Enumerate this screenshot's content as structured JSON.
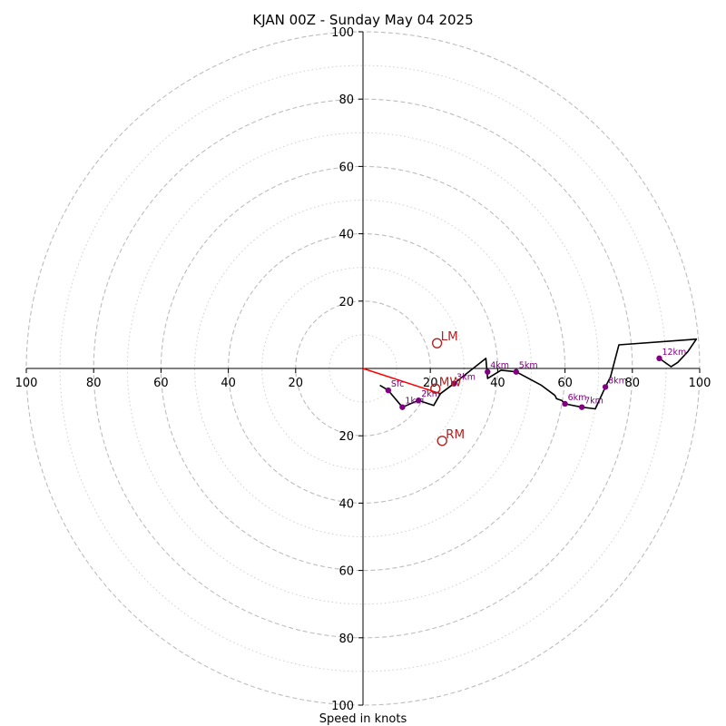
{
  "chart_data": {
    "type": "line",
    "subtype": "hodograph",
    "title": "KJAN 00Z - Sunday May 04 2025",
    "xlabel": "Speed in knots",
    "xlim": [
      -100,
      100
    ],
    "ylim": [
      -100,
      100
    ],
    "ring_major": [
      20,
      40,
      60,
      80,
      100
    ],
    "ring_minor": [
      10,
      30,
      50,
      70,
      90
    ],
    "x_ticks": [
      {
        "value": -100,
        "label": "100"
      },
      {
        "value": -80,
        "label": "80"
      },
      {
        "value": -60,
        "label": "60"
      },
      {
        "value": -40,
        "label": "40"
      },
      {
        "value": -20,
        "label": "20"
      },
      {
        "value": 20,
        "label": "20"
      },
      {
        "value": 40,
        "label": "40"
      },
      {
        "value": 60,
        "label": "60"
      },
      {
        "value": 80,
        "label": "80"
      },
      {
        "value": 100,
        "label": "100"
      }
    ],
    "y_ticks": [
      {
        "value": 100,
        "label": "100"
      },
      {
        "value": 80,
        "label": "80"
      },
      {
        "value": 60,
        "label": "60"
      },
      {
        "value": 40,
        "label": "40"
      },
      {
        "value": 20,
        "label": "20"
      },
      {
        "value": -20,
        "label": "20"
      },
      {
        "value": -40,
        "label": "40"
      },
      {
        "value": -60,
        "label": "60"
      },
      {
        "value": -80,
        "label": "80"
      },
      {
        "value": -100,
        "label": "100"
      }
    ],
    "series": [
      {
        "values": [
          [
            5,
            -5
          ],
          [
            7.5,
            -6.5
          ],
          [
            11.7,
            -11.5
          ],
          [
            16.5,
            -9.5
          ],
          [
            21,
            -11
          ],
          [
            23,
            -7.5
          ],
          [
            27,
            -4.5
          ],
          [
            36.5,
            3
          ],
          [
            37,
            -3
          ],
          [
            41,
            -0.5
          ],
          [
            45.5,
            -1
          ],
          [
            53,
            -5
          ],
          [
            57,
            -8
          ],
          [
            57.5,
            -9
          ],
          [
            59,
            -9.5
          ],
          [
            60,
            -10.5
          ],
          [
            65,
            -11.5
          ],
          [
            69,
            -12
          ],
          [
            72,
            -5.5
          ],
          [
            73.5,
            -2.5
          ],
          [
            76,
            7
          ],
          [
            99,
            8.7
          ],
          [
            96.5,
            5
          ],
          [
            93.5,
            1.8
          ],
          [
            91.5,
            0.5
          ],
          [
            88,
            3
          ]
        ]
      }
    ],
    "level_markers": [
      {
        "label": "Sfc",
        "u": 7.5,
        "v": -6.5
      },
      {
        "label": "1km",
        "u": 11.7,
        "v": -11.5
      },
      {
        "label": "2km",
        "u": 16.5,
        "v": -9.5
      },
      {
        "label": "3km",
        "u": 27,
        "v": -4.5
      },
      {
        "label": "4km",
        "u": 37,
        "v": -1
      },
      {
        "label": "5km",
        "u": 45.5,
        "v": -1
      },
      {
        "label": "6km",
        "u": 60,
        "v": -10.5
      },
      {
        "label": "7km",
        "u": 65,
        "v": -11.5
      },
      {
        "label": "8km",
        "u": 72,
        "v": -5.5
      },
      {
        "label": "12km",
        "u": 88,
        "v": 3
      }
    ],
    "motion_markers": [
      {
        "label": "LM",
        "u": 22,
        "v": 7.5
      },
      {
        "label": "MW",
        "u": 21.5,
        "v": -6
      },
      {
        "label": "RM",
        "u": 23.5,
        "v": -21.5
      }
    ],
    "motion_vector": {
      "from": [
        0,
        0
      ],
      "to": [
        23,
        -7.5
      ]
    },
    "colors": {
      "hodograph_line": "#000000",
      "level_marker": "#800080",
      "motion": "#b22222",
      "motion_vector": "#ff0000",
      "ring_grid": "#bdbdbd",
      "axis": "#000000"
    }
  }
}
